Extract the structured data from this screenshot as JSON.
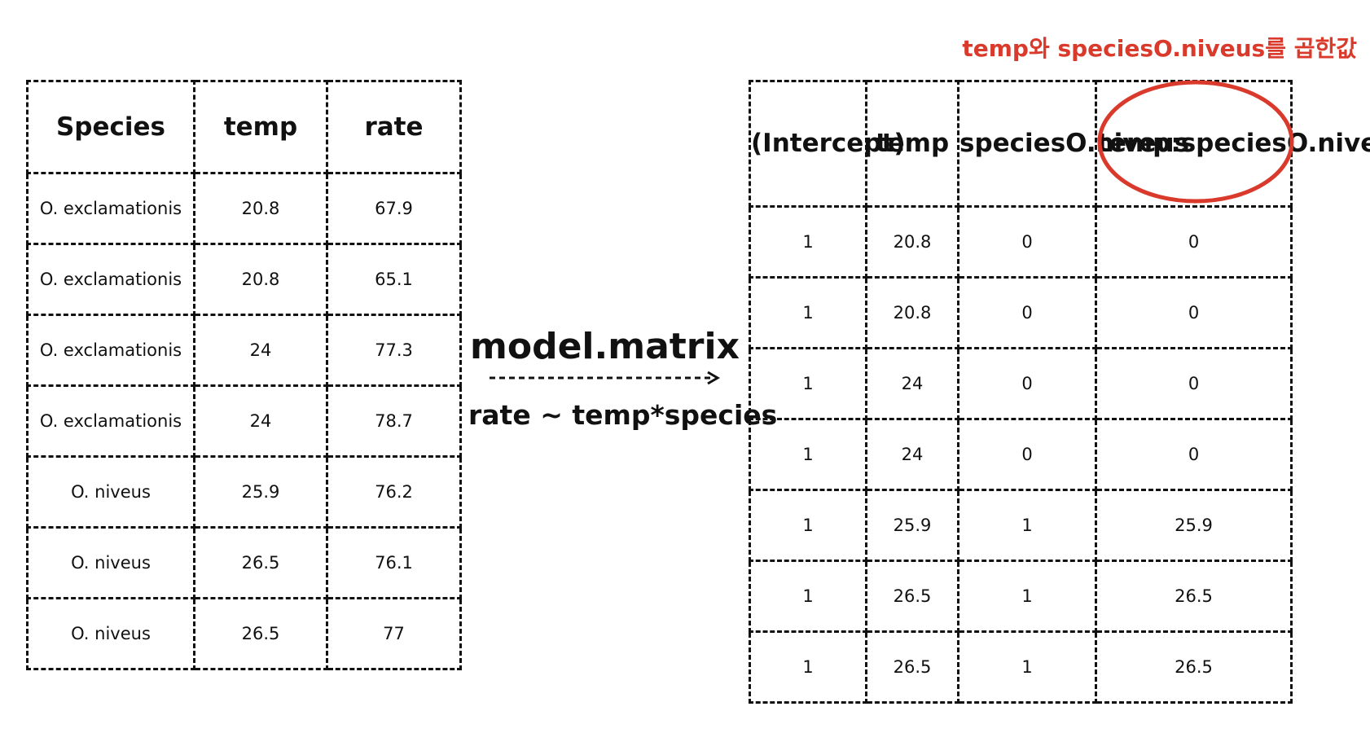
{
  "annotation": "temp와 speciesO.niveus를 곱한값",
  "input_table": {
    "headers": [
      "Species",
      "temp",
      "rate"
    ],
    "rows": [
      [
        "O. exclamationis",
        "20.8",
        "67.9"
      ],
      [
        "O. exclamationis",
        "20.8",
        "65.1"
      ],
      [
        "O. exclamationis",
        "24",
        "77.3"
      ],
      [
        "O. exclamationis",
        "24",
        "78.7"
      ],
      [
        "O. niveus",
        "25.9",
        "76.2"
      ],
      [
        "O. niveus",
        "26.5",
        "76.1"
      ],
      [
        "O. niveus",
        "26.5",
        "77"
      ]
    ]
  },
  "transform": {
    "function": "model.matrix",
    "formula": "rate ~ temp*species"
  },
  "output_table": {
    "headers": [
      "(Intercept)",
      "temp",
      "speciesO.niveus",
      "temp:speciesO.niveus"
    ],
    "rows": [
      [
        "1",
        "20.8",
        "0",
        "0"
      ],
      [
        "1",
        "20.8",
        "0",
        "0"
      ],
      [
        "1",
        "24",
        "0",
        "0"
      ],
      [
        "1",
        "24",
        "0",
        "0"
      ],
      [
        "1",
        "25.9",
        "1",
        "25.9"
      ],
      [
        "1",
        "26.5",
        "1",
        "26.5"
      ],
      [
        "1",
        "26.5",
        "1",
        "26.5"
      ]
    ]
  },
  "colors": {
    "highlight": "#d93a2b",
    "line": "#111111"
  }
}
